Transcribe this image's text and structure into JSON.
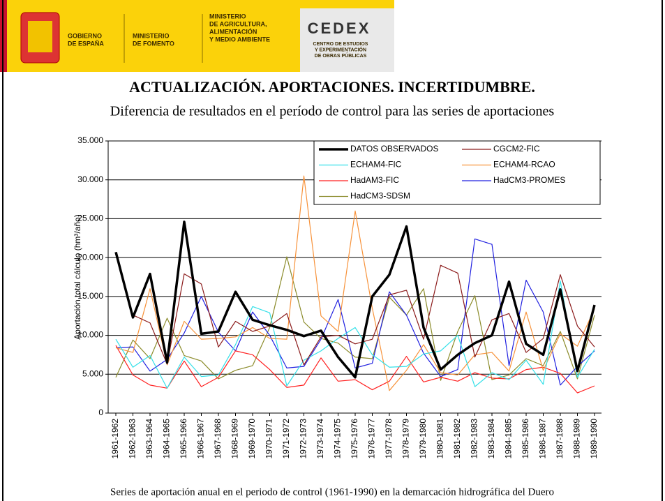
{
  "header": {
    "gobierno": [
      "GOBIERNO",
      "DE ESPAÑA"
    ],
    "fomento": [
      "MINISTERIO",
      "DE FOMENTO"
    ],
    "agricultura": [
      "MINISTERIO",
      "DE AGRICULTURA,",
      "ALIMENTACIÓN",
      "Y MEDIO AMBIENTE"
    ],
    "cedex": "CEDEX",
    "cedex_sub": [
      "CENTRO DE ESTUDIOS",
      "Y EXPERIMENTACIÓN",
      "DE OBRAS PÚBLICAS"
    ]
  },
  "title": "ACTUALIZACIÓN. APORTACIONES. INCERTIDUMBRE.",
  "subtitle": "Diferencia de resultados en el período de control para las series de aportaciones",
  "caption": "Series de aportación anual en el periodo de control (1961-1990) en la demarcación hidrográfica del Duero",
  "chart_data": {
    "type": "line",
    "ylabel": "Aportación total cálculo (hm³/año)",
    "categories": [
      "1961-1962",
      "1962-1963",
      "1963-1964",
      "1964-1965",
      "1965-1966",
      "1966-1967",
      "1967-1968",
      "1968-1969",
      "1969-1970",
      "1970-1971",
      "1971-1972",
      "1972-1973",
      "1973-1974",
      "1974-1975",
      "1975-1976",
      "1976-1977",
      "1977-1978",
      "1978-1979",
      "1979-1980",
      "1980-1981",
      "1981-1982",
      "1982-1983",
      "1983-1984",
      "1984-1985",
      "1985-1986",
      "1986-1987",
      "1987-1988",
      "1988-1989",
      "1989-1990"
    ],
    "ylim": [
      0,
      35000
    ],
    "yticks": [
      {
        "value": 0,
        "label": "0"
      },
      {
        "value": 5000,
        "label": "5.000"
      },
      {
        "value": 10000,
        "label": "10.000"
      },
      {
        "value": 15000,
        "label": "15.000"
      },
      {
        "value": 20000,
        "label": "20.000"
      },
      {
        "value": 25000,
        "label": "25.000"
      },
      {
        "value": 30000,
        "label": "30.000"
      },
      {
        "value": 35000,
        "label": "35.000"
      }
    ],
    "grid": true,
    "legend": "top-right",
    "series": [
      {
        "name": "DATOS OBSERVADOS",
        "color": "#000000",
        "values": [
          20700,
          12300,
          17900,
          6500,
          24600,
          10200,
          10500,
          15600,
          12000,
          11300,
          10700,
          9900,
          10600,
          7200,
          4600,
          15000,
          17800,
          24000,
          11000,
          5600,
          7500,
          9000,
          10000,
          16900,
          8900,
          7500,
          15900,
          5400,
          13900
        ]
      },
      {
        "name": "CGCM2-FIC",
        "color": "#8b1a1a",
        "values": [
          20500,
          12600,
          11600,
          6300,
          17900,
          16600,
          8500,
          11800,
          10500,
          11200,
          12800,
          6200,
          9800,
          10000,
          8900,
          9500,
          15200,
          15800,
          9500,
          19000,
          18000,
          7200,
          12000,
          12800,
          7800,
          9600,
          17800,
          11200,
          8500
        ]
      },
      {
        "name": "ECHAM4-FIC",
        "color": "#33e0e8",
        "values": [
          9500,
          5900,
          7400,
          3200,
          7200,
          4700,
          4900,
          8800,
          13700,
          12900,
          3500,
          6800,
          8000,
          9600,
          11000,
          7500,
          5900,
          6000,
          7600,
          8000,
          10000,
          3400,
          5200,
          4300,
          6800,
          3700,
          17000,
          4600,
          8200
        ]
      },
      {
        "name": "ECHAM4-RCAO",
        "color": "#f7923a",
        "values": [
          8400,
          7800,
          16000,
          6200,
          11800,
          9500,
          9600,
          9800,
          11000,
          9600,
          9500,
          30500,
          12500,
          10500,
          26000,
          13500,
          2900,
          5500,
          8800,
          5200,
          4900,
          7500,
          7800,
          5400,
          13000,
          5500,
          10200,
          8600,
          13400
        ]
      },
      {
        "name": "HadAM3-FIC",
        "color": "#ff2020",
        "values": [
          8700,
          4900,
          3600,
          3200,
          6700,
          3400,
          4600,
          8000,
          7500,
          5600,
          3300,
          3600,
          7100,
          4100,
          4300,
          3000,
          4100,
          7300,
          4000,
          4600,
          4100,
          5200,
          4500,
          4400,
          5600,
          5900,
          5100,
          2600,
          3500
        ]
      },
      {
        "name": "HadCM3-PROMES",
        "color": "#2020e0",
        "values": [
          8400,
          8500,
          5400,
          6900,
          10300,
          15000,
          10400,
          8000,
          13000,
          10000,
          5800,
          6000,
          9500,
          14600,
          5800,
          6400,
          15600,
          12600,
          7700,
          4700,
          5600,
          22400,
          21700,
          6100,
          17100,
          13000,
          3600,
          6000,
          8000
        ]
      },
      {
        "name": "HadCM3-SDSM",
        "color": "#8b8b2a",
        "values": [
          4600,
          9400,
          7000,
          12200,
          7400,
          6700,
          4400,
          5500,
          6100,
          11000,
          20100,
          11700,
          9600,
          9000,
          7200,
          7000,
          14900,
          12600,
          16000,
          4200,
          10500,
          15100,
          4300,
          4900,
          7000,
          6100,
          10500,
          4400,
          12600
        ]
      }
    ]
  }
}
